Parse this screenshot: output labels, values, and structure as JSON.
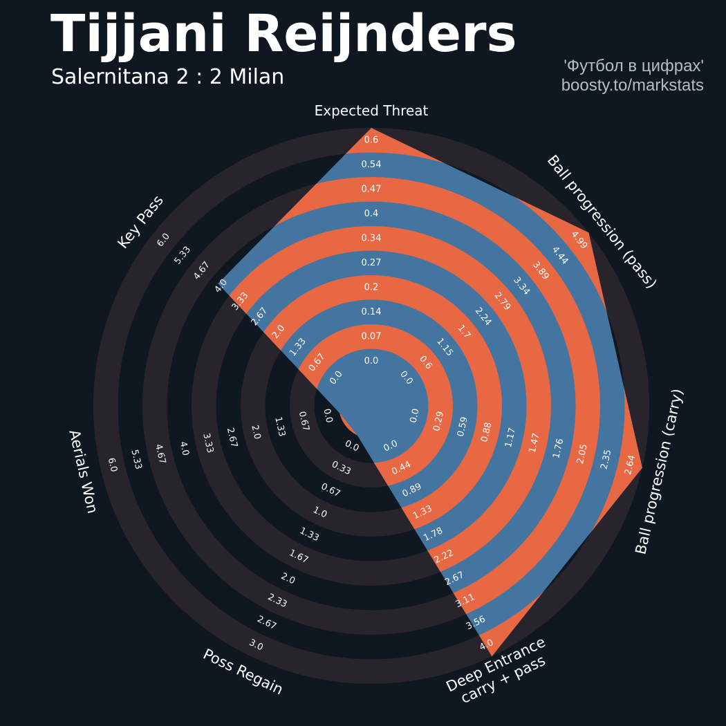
{
  "header": {
    "title": "Tijjani Reijnders",
    "subtitle": "Salernitana 2 : 2 Milan",
    "credit_line1": "'Футбол в цифрах'",
    "credit_line2": "boosty.to/markstats"
  },
  "colors": {
    "background": "#0f1820",
    "ring_alt": "#29242b",
    "player_fill": "#4375a0",
    "band": "#e76842",
    "text": "#ffffff"
  },
  "chart_data": {
    "type": "radar",
    "grid": false,
    "legend": "none",
    "parameters": [
      {
        "label_lines": [
          "Expected Threat"
        ],
        "value": 0.6,
        "range": [
          0.0,
          0.6
        ],
        "ticks": [
          "0.0",
          "0.07",
          "0.14",
          "0.2",
          "0.27",
          "0.34",
          "0.4",
          "0.47",
          "0.54",
          "0.6"
        ]
      },
      {
        "label_lines": [
          "Ball progression (pass)"
        ],
        "value": 4.99,
        "range": [
          0.0,
          4.99
        ],
        "ticks": [
          "0.0",
          "0.6",
          "1.15",
          "1.7",
          "2.24",
          "2.79",
          "3.34",
          "3.89",
          "4.44",
          "4.99"
        ]
      },
      {
        "label_lines": [
          "Ball progression (carry)"
        ],
        "value": 2.64,
        "range": [
          0.0,
          2.64
        ],
        "ticks": [
          "0.0",
          "0.29",
          "0.59",
          "0.88",
          "1.17",
          "1.47",
          "1.76",
          "2.05",
          "2.35",
          "2.64"
        ]
      },
      {
        "label_lines": [
          "Deep Entrance",
          "carry + pass"
        ],
        "value": 4.0,
        "range": [
          0.0,
          4.0
        ],
        "ticks": [
          "0.0",
          "0.44",
          "0.89",
          "1.33",
          "1.78",
          "2.22",
          "2.67",
          "3.11",
          "3.56",
          "4.0"
        ]
      },
      {
        "label_lines": [
          "Poss Regain"
        ],
        "value": 0.0,
        "range": [
          0.0,
          3.0
        ],
        "ticks": [
          "0.0",
          "0.33",
          "0.67",
          "1.0",
          "1.33",
          "1.67",
          "2.0",
          "2.33",
          "2.67",
          "3.0"
        ]
      },
      {
        "label_lines": [
          "Aerials Won"
        ],
        "value": 0.0,
        "range": [
          0.0,
          6.0
        ],
        "ticks": [
          "0.0",
          "0.67",
          "1.33",
          "2.0",
          "2.67",
          "3.33",
          "4.0",
          "4.67",
          "5.33",
          "6.0"
        ]
      },
      {
        "label_lines": [
          "Key Pass"
        ],
        "value": 4.0,
        "range": [
          0.0,
          6.0
        ],
        "ticks": [
          "0.0",
          "0.67",
          "1.33",
          "2.0",
          "2.67",
          "3.33",
          "4.0",
          "4.67",
          "5.33",
          "6.0"
        ]
      }
    ]
  }
}
